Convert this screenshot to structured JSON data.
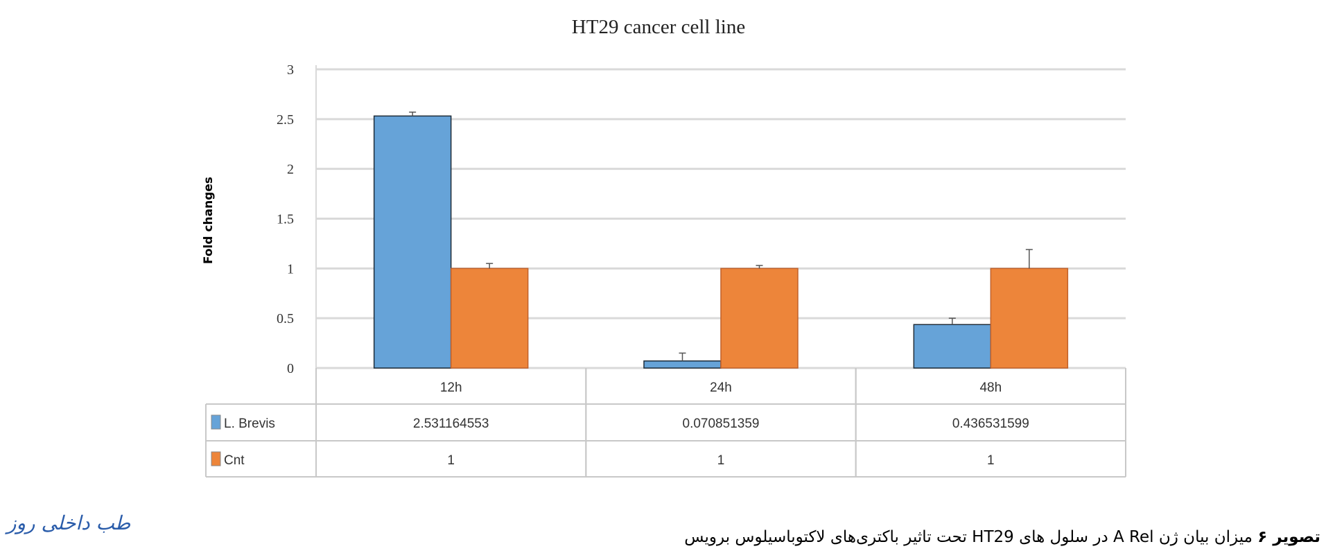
{
  "chart_data": {
    "type": "bar",
    "title": "HT29  cancer cell line",
    "xlabel": "",
    "ylabel": "Fold changes",
    "ylim": [
      0,
      3
    ],
    "yticks": [
      "0",
      "0.5",
      "1",
      "1.5",
      "2",
      "2.5",
      "3"
    ],
    "grid": true,
    "legend": "data-table",
    "categories": [
      "12h",
      "24h",
      "48h"
    ],
    "series": [
      {
        "name": "L. Brevis",
        "color": "#66a3d8",
        "values": [
          2.531164553,
          0.070851359,
          0.436531599
        ],
        "labels": [
          "2.531164553",
          "0.070851359",
          "0.436531599"
        ],
        "error_upper": [
          2.57,
          0.15,
          0.5
        ]
      },
      {
        "name": "Cnt",
        "color": "#ed853a",
        "values": [
          1,
          1,
          1
        ],
        "labels": [
          "1",
          "1",
          "1"
        ],
        "error_upper": [
          1.05,
          1.03,
          1.19
        ]
      }
    ]
  },
  "caption": {
    "label": "تصویر ۶",
    "text": "میزان بیان ژن A Rel در سلول های HT29 تحت تاثیر باکتری‌های لاکتوباسیلوس برویس"
  },
  "logo": {
    "text": "طب داخلی روز"
  }
}
